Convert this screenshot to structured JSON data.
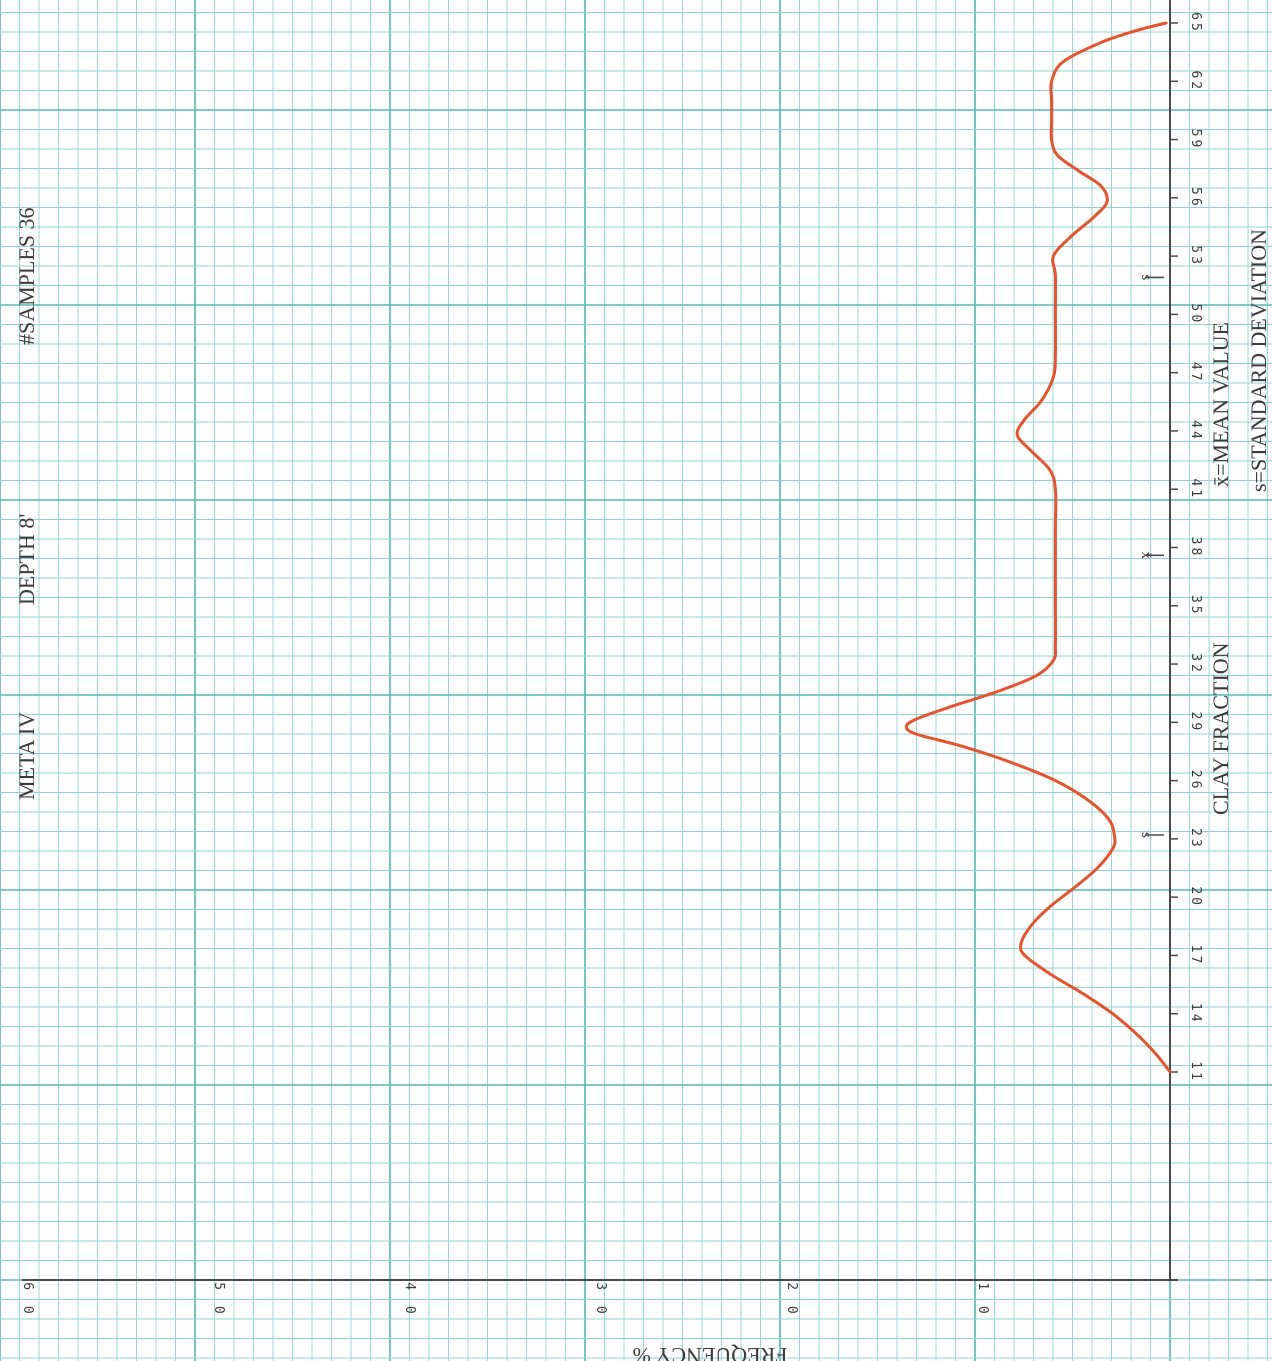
{
  "header": {
    "site": "META IV",
    "depth": "DEPTH 8'",
    "samples": "#SAMPLES 36"
  },
  "legend": {
    "mean": "x̄=MEAN VALUE",
    "std": "s=STANDARD DEVIATION"
  },
  "colors": {
    "grid_minor": "#8fd3cf",
    "grid_major": "#55b8b2",
    "axis": "#4a4a4a",
    "curve": "#e4542e",
    "text": "#3a3a3a"
  },
  "chart_data": {
    "type": "line",
    "orientation": "rotated",
    "title": "",
    "xlabel": "CLAY FRACTION",
    "ylabel": "FREQUENCY %",
    "x_ticks": [
      "11",
      "14",
      "17",
      "20",
      "23",
      "26",
      "29",
      "32",
      "35",
      "38",
      "41",
      "44",
      "47",
      "50",
      "53",
      "56",
      "59",
      "62",
      "65"
    ],
    "y_ticks": [
      "1 0",
      "2 0",
      "3 0",
      "4 0",
      "5 0",
      "6 0"
    ],
    "ylim": [
      0,
      60
    ],
    "grid": true,
    "markers": [
      {
        "label": "s",
        "x": 23.2
      },
      {
        "label": "x̄",
        "x": 37.6
      },
      {
        "label": "s",
        "x": 51.9
      }
    ],
    "series": [
      {
        "points": [
          [
            11,
            0
          ],
          [
            12,
            0.8
          ],
          [
            13,
            1.8
          ],
          [
            14,
            3.0
          ],
          [
            15,
            4.5
          ],
          [
            16,
            6.2
          ],
          [
            17,
            7.6
          ],
          [
            17.6,
            7.8
          ],
          [
            18.5,
            7.3
          ],
          [
            19.5,
            6.3
          ],
          [
            20.5,
            5.0
          ],
          [
            21.5,
            3.8
          ],
          [
            22.5,
            3.0
          ],
          [
            23.1,
            2.9
          ],
          [
            24,
            3.2
          ],
          [
            25,
            4.3
          ],
          [
            26,
            6.0
          ],
          [
            27,
            8.5
          ],
          [
            27.8,
            11.0
          ],
          [
            28.4,
            13.3
          ],
          [
            28.8,
            13.8
          ],
          [
            29.2,
            13.2
          ],
          [
            29.8,
            11.5
          ],
          [
            30.6,
            9.0
          ],
          [
            31.4,
            7.0
          ],
          [
            32.2,
            6.1
          ],
          [
            33,
            6.0
          ],
          [
            35,
            6.0
          ],
          [
            37,
            6.0
          ],
          [
            39,
            6.0
          ],
          [
            41,
            6.0
          ],
          [
            42,
            6.3
          ],
          [
            43,
            7.3
          ],
          [
            43.8,
            8.0
          ],
          [
            44.6,
            7.6
          ],
          [
            45.6,
            6.7
          ],
          [
            46.8,
            6.1
          ],
          [
            48,
            6.0
          ],
          [
            50,
            6.0
          ],
          [
            52,
            6.0
          ],
          [
            53,
            6.1
          ],
          [
            54,
            5.2
          ],
          [
            55,
            4.0
          ],
          [
            55.8,
            3.3
          ],
          [
            56.6,
            3.6
          ],
          [
            57.4,
            4.8
          ],
          [
            58.2,
            5.9
          ],
          [
            59,
            6.2
          ],
          [
            60,
            6.2
          ],
          [
            61,
            6.2
          ],
          [
            62,
            6.2
          ],
          [
            63,
            5.6
          ],
          [
            64,
            3.6
          ],
          [
            64.6,
            1.8
          ],
          [
            65,
            0.2
          ]
        ]
      }
    ]
  }
}
